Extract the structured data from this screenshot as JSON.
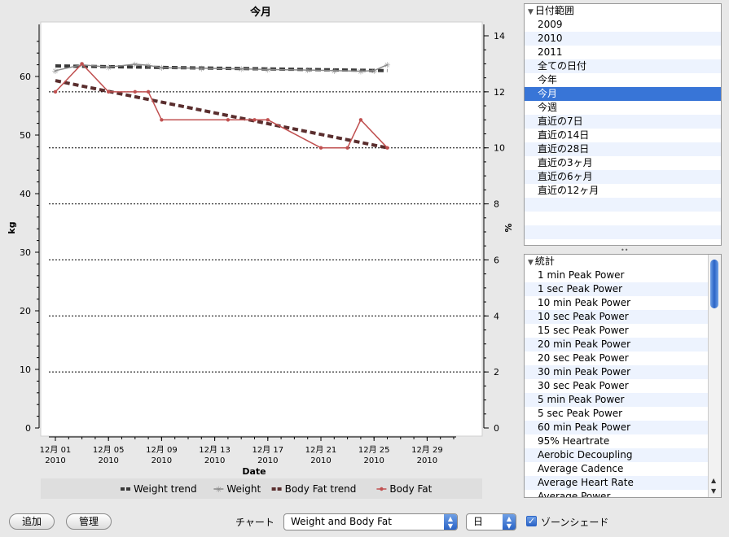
{
  "chart_data": {
    "type": "line",
    "title": "今月",
    "xlabel": "Date",
    "ylabel_left": "kg",
    "ylabel_right": "%",
    "ylim_left": [
      0,
      70
    ],
    "ylim_right": [
      0,
      14
    ],
    "y_ticks_left": [
      "0",
      "10",
      "20",
      "30",
      "40",
      "50",
      "60"
    ],
    "y_ticks_right": [
      "0",
      "2",
      "4",
      "6",
      "8",
      "10",
      "12",
      "14"
    ],
    "grid_lines_right": [
      2,
      4,
      6,
      8,
      10,
      12
    ],
    "x_ticks": [
      {
        "day": 1,
        "line1": "12月 01",
        "line2": "2010"
      },
      {
        "day": 5,
        "line1": "12月 05",
        "line2": "2010"
      },
      {
        "day": 9,
        "line1": "12月 09",
        "line2": "2010"
      },
      {
        "day": 13,
        "line1": "12月 13",
        "line2": "2010"
      },
      {
        "day": 17,
        "line1": "12月 17",
        "line2": "2010"
      },
      {
        "day": 21,
        "line1": "12月 21",
        "line2": "2010"
      },
      {
        "day": 25,
        "line1": "12月 25",
        "line2": "2010"
      },
      {
        "day": 29,
        "line1": "12月 29",
        "line2": "2010"
      }
    ],
    "series": [
      {
        "name": "Weight trend",
        "axis": "left",
        "color": "#3a3a3a",
        "style": "dashed",
        "points": [
          [
            1,
            61.8
          ],
          [
            26,
            61
          ]
        ]
      },
      {
        "name": "Weight",
        "axis": "left",
        "color": "#8a8a8a",
        "style": "line",
        "points": [
          [
            1,
            61
          ],
          [
            3,
            62
          ],
          [
            5,
            61.6
          ],
          [
            7,
            62.1
          ],
          [
            8,
            61.9
          ],
          [
            9,
            61.5
          ],
          [
            12,
            61.4
          ],
          [
            15,
            61.3
          ],
          [
            17,
            61.2
          ],
          [
            20,
            61.1
          ],
          [
            22,
            61
          ],
          [
            24,
            60.9
          ],
          [
            25,
            61
          ],
          [
            26,
            62
          ]
        ]
      },
      {
        "name": "Body Fat trend",
        "axis": "right",
        "color": "#5a2e2e",
        "style": "dashed",
        "points": [
          [
            1,
            12.4
          ],
          [
            26,
            10
          ]
        ]
      },
      {
        "name": "Body Fat",
        "axis": "right",
        "color": "#c05050",
        "style": "line",
        "points": [
          [
            1,
            12
          ],
          [
            3,
            13
          ],
          [
            5,
            12
          ],
          [
            7,
            12
          ],
          [
            8,
            12
          ],
          [
            9,
            11
          ],
          [
            14,
            11
          ],
          [
            16,
            11
          ],
          [
            17,
            11
          ],
          [
            21,
            10
          ],
          [
            23,
            10
          ],
          [
            24,
            11
          ],
          [
            26,
            10
          ]
        ]
      }
    ],
    "legend_placement": "bottom"
  },
  "date_panel": {
    "header": "日付範囲",
    "items": [
      "2009",
      "2010",
      "2011",
      "全ての日付",
      "今年",
      "今月",
      "今週",
      "直近の7日",
      "直近の14日",
      "直近の28日",
      "直近の3ヶ月",
      "直近の6ヶ月",
      "直近の12ヶ月"
    ],
    "selected_index": 5
  },
  "stats_panel": {
    "header": "統計",
    "items": [
      "1 min Peak Power",
      "1 sec Peak Power",
      "10 min Peak Power",
      "10 sec Peak Power",
      "15 sec Peak Power",
      "20 min Peak Power",
      "20 sec Peak Power",
      "30 min Peak Power",
      "30 sec Peak Power",
      "5 min Peak Power",
      "5 sec Peak Power",
      "60 min Peak Power",
      "95% Heartrate",
      "Aerobic Decoupling",
      "Average Cadence",
      "Average Heart Rate",
      "Average Power"
    ]
  },
  "bottom_bar": {
    "add_label": "追加",
    "manage_label": "管理",
    "chart_label": "チャート",
    "chart_select_value": "Weight and Body Fat",
    "period_select_value": "日",
    "zone_shade_label": "ゾーンシェード",
    "zone_shade_checked": true
  }
}
